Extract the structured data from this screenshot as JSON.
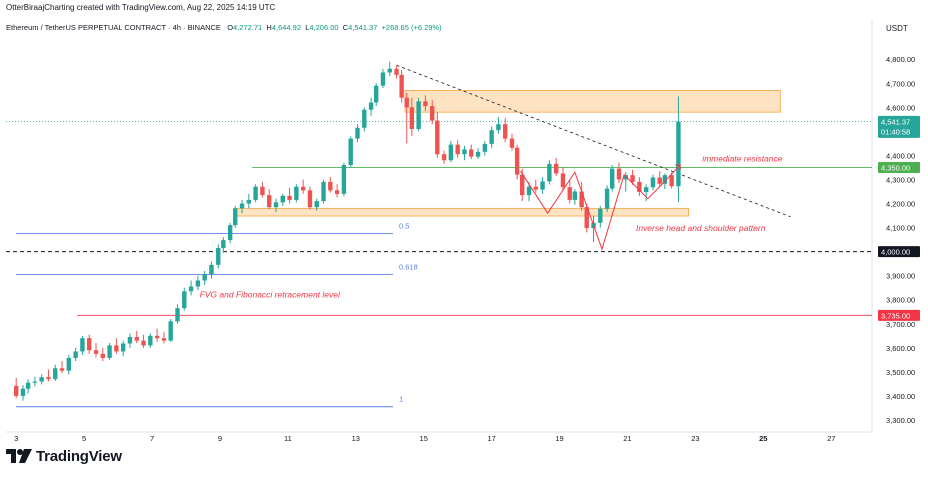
{
  "header": {
    "creator_line": "OtterBiraajCharting created with TradingView.com, Aug 22, 2025 14:19 UTC",
    "symbol": "Ethereum / TetherUS PERPETUAL CONTRACT · 4h · BINANCE",
    "open_label": "O",
    "open": "4,272.71",
    "high_label": "H",
    "high": "4,644.92",
    "low_label": "L",
    "low": "4,206.00",
    "close_label": "C",
    "close": "4,541.37",
    "change": "+268.65 (+6.29%)"
  },
  "footer": {
    "brand": "TradingView"
  },
  "colors": {
    "up": "#26a69a",
    "down": "#ef5350",
    "fvg_fill": "#fde3c2",
    "fvg_stroke": "#f7a440",
    "fib_line": "#5b7ee5",
    "resistance_line": "#4caf50",
    "red_line": "#f23645",
    "annotation_red": "#f23645"
  },
  "chart_data": {
    "type": "candlestick",
    "currency": "USDT",
    "ylim": [
      3250,
      4880
    ],
    "x_tick_labels": [
      "3",
      "5",
      "7",
      "9",
      "11",
      "13",
      "15",
      "17",
      "19",
      "21",
      "23",
      "25",
      "27"
    ],
    "x_tick_days": [
      3,
      5,
      7,
      9,
      11,
      13,
      15,
      17,
      19,
      21,
      23,
      25,
      27
    ],
    "x_range_days": [
      2.7,
      28.2
    ],
    "y_tick_labels": [
      "4,800.00",
      "4,700.00",
      "4,600.00",
      "4,400.00",
      "4,300.00",
      "4,200.00",
      "4,100.00",
      "3,900.00",
      "3,800.00",
      "3,700.00",
      "3,600.00",
      "3,500.00",
      "3,400.00",
      "3,300.00"
    ],
    "y_tick_values": [
      4800,
      4700,
      4600,
      4400,
      4300,
      4200,
      4100,
      3900,
      3800,
      3700,
      3600,
      3500,
      3400,
      3300
    ],
    "price_badges": [
      {
        "value": 4541.37,
        "label": "4,541.37",
        "sublabel": "01:40:58",
        "color": "#26a69a"
      },
      {
        "value": 4350,
        "label": "4,350.00",
        "color": "#4caf50"
      },
      {
        "value": 4000,
        "label": "4,000.00",
        "color": "#131722"
      },
      {
        "value": 3735,
        "label": "3,735.00",
        "color": "#f23645"
      }
    ],
    "horizontal_lines": [
      {
        "value": 4350,
        "from_day": 9.95,
        "color": "#4caf50",
        "style": "solid"
      },
      {
        "value": 4000,
        "from_day": 2.7,
        "color": "#131722",
        "style": "dashed"
      },
      {
        "value": 3735,
        "from_day": 4.8,
        "color": "#f23645",
        "style": "solid"
      },
      {
        "value": 4541,
        "from_day": 2.7,
        "color": "#26a69a",
        "style": "dotted"
      }
    ],
    "fib_levels": [
      {
        "label": "0.5",
        "value": 4075,
        "from_day": 2.7,
        "to_day": 13.8
      },
      {
        "label": "0.618",
        "value": 3905,
        "from_day": 2.7,
        "to_day": 13.8
      },
      {
        "label": "1",
        "value": 3355,
        "from_day": 2.7,
        "to_day": 13.8
      }
    ],
    "zones": [
      {
        "from_day": 14.45,
        "to_day": 25.5,
        "top": 4670,
        "bottom": 4580
      },
      {
        "from_day": 9.45,
        "to_day": 22.8,
        "top": 4180,
        "bottom": 4148
      }
    ],
    "trendline": {
      "x": [
        14.2,
        25.8
      ],
      "y": [
        4775,
        4145
      ]
    },
    "pattern_path": {
      "x": [
        17.85,
        18.65,
        19.45,
        20.25,
        20.9,
        21.6,
        22.05,
        22.55
      ],
      "y": [
        4335,
        4160,
        4330,
        4010,
        4320,
        4220,
        4285,
        4360
      ]
    },
    "annotations": [
      {
        "text": "immediate resistance",
        "day": 23.2,
        "value": 4375
      },
      {
        "text": "Inverse head and shoulder pattern",
        "day": 21.25,
        "value": 4085
      },
      {
        "text": "FVG and Fibonacci retracement level",
        "day": 8.4,
        "value": 3810
      }
    ],
    "candles": [
      [
        3.0,
        3442,
        3475,
        3390,
        3400
      ],
      [
        3.2,
        3400,
        3445,
        3380,
        3430
      ],
      [
        3.35,
        3430,
        3470,
        3410,
        3455
      ],
      [
        3.55,
        3455,
        3480,
        3440,
        3460
      ],
      [
        3.75,
        3460,
        3490,
        3448,
        3478
      ],
      [
        3.95,
        3478,
        3510,
        3460,
        3470
      ],
      [
        4.15,
        3470,
        3530,
        3462,
        3515
      ],
      [
        4.35,
        3515,
        3545,
        3495,
        3505
      ],
      [
        4.55,
        3505,
        3570,
        3490,
        3558
      ],
      [
        4.75,
        3558,
        3600,
        3545,
        3585
      ],
      [
        4.95,
        3585,
        3650,
        3570,
        3640
      ],
      [
        5.15,
        3640,
        3655,
        3575,
        3590
      ],
      [
        5.35,
        3590,
        3620,
        3560,
        3575
      ],
      [
        5.55,
        3575,
        3600,
        3545,
        3558
      ],
      [
        5.75,
        3558,
        3620,
        3550,
        3610
      ],
      [
        5.95,
        3610,
        3640,
        3575,
        3585
      ],
      [
        6.15,
        3585,
        3630,
        3565,
        3618
      ],
      [
        6.35,
        3618,
        3660,
        3600,
        3645
      ],
      [
        6.55,
        3645,
        3670,
        3620,
        3630
      ],
      [
        6.75,
        3630,
        3655,
        3600,
        3610
      ],
      [
        6.95,
        3610,
        3660,
        3600,
        3650
      ],
      [
        7.15,
        3650,
        3680,
        3625,
        3640
      ],
      [
        7.35,
        3640,
        3665,
        3618,
        3630
      ],
      [
        7.55,
        3630,
        3720,
        3625,
        3710
      ],
      [
        7.75,
        3710,
        3780,
        3700,
        3765
      ],
      [
        7.95,
        3765,
        3850,
        3755,
        3835
      ],
      [
        8.15,
        3835,
        3880,
        3818,
        3855
      ],
      [
        8.35,
        3855,
        3900,
        3840,
        3880
      ],
      [
        8.55,
        3880,
        3920,
        3862,
        3905
      ],
      [
        8.75,
        3905,
        3960,
        3888,
        3945
      ],
      [
        8.95,
        3945,
        4030,
        3930,
        4015
      ],
      [
        9.1,
        4015,
        4060,
        3995,
        4048
      ],
      [
        9.3,
        4048,
        4120,
        4035,
        4110
      ],
      [
        9.45,
        4110,
        4190,
        4100,
        4180
      ],
      [
        9.65,
        4180,
        4215,
        4160,
        4200
      ],
      [
        9.85,
        4200,
        4240,
        4180,
        4215
      ],
      [
        10.05,
        4215,
        4280,
        4205,
        4270
      ],
      [
        10.25,
        4270,
        4290,
        4225,
        4235
      ],
      [
        10.45,
        4235,
        4260,
        4175,
        4185
      ],
      [
        10.65,
        4185,
        4220,
        4165,
        4205
      ],
      [
        10.85,
        4205,
        4240,
        4190,
        4232
      ],
      [
        11.05,
        4232,
        4265,
        4200,
        4215
      ],
      [
        11.25,
        4215,
        4280,
        4205,
        4270
      ],
      [
        11.45,
        4270,
        4300,
        4240,
        4255
      ],
      [
        11.65,
        4255,
        4270,
        4175,
        4185
      ],
      [
        11.85,
        4185,
        4220,
        4170,
        4210
      ],
      [
        12.05,
        4210,
        4300,
        4200,
        4290
      ],
      [
        12.25,
        4290,
        4310,
        4245,
        4255
      ],
      [
        12.45,
        4255,
        4280,
        4225,
        4240
      ],
      [
        12.65,
        4240,
        4370,
        4230,
        4360
      ],
      [
        12.85,
        4360,
        4480,
        4350,
        4470
      ],
      [
        13.05,
        4470,
        4530,
        4455,
        4515
      ],
      [
        13.25,
        4515,
        4600,
        4500,
        4590
      ],
      [
        13.45,
        4590,
        4640,
        4565,
        4620
      ],
      [
        13.6,
        4620,
        4700,
        4605,
        4690
      ],
      [
        13.8,
        4690,
        4760,
        4680,
        4745
      ],
      [
        14.0,
        4745,
        4790,
        4730,
        4760
      ],
      [
        14.2,
        4760,
        4775,
        4720,
        4735
      ],
      [
        14.35,
        4735,
        4755,
        4620,
        4640
      ],
      [
        14.5,
        4640,
        4660,
        4450,
        4600
      ],
      [
        14.65,
        4600,
        4640,
        4480,
        4510
      ],
      [
        14.85,
        4510,
        4640,
        4500,
        4625
      ],
      [
        15.05,
        4625,
        4650,
        4585,
        4605
      ],
      [
        15.25,
        4605,
        4630,
        4530,
        4545
      ],
      [
        15.4,
        4545,
        4580,
        4390,
        4405
      ],
      [
        15.6,
        4405,
        4420,
        4365,
        4380
      ],
      [
        15.8,
        4380,
        4460,
        4372,
        4445
      ],
      [
        16.0,
        4445,
        4465,
        4390,
        4405
      ],
      [
        16.2,
        4405,
        4440,
        4380,
        4425
      ],
      [
        16.4,
        4425,
        4445,
        4385,
        4395
      ],
      [
        16.6,
        4395,
        4430,
        4385,
        4415
      ],
      [
        16.8,
        4415,
        4460,
        4400,
        4448
      ],
      [
        17.0,
        4448,
        4520,
        4430,
        4505
      ],
      [
        17.2,
        4505,
        4560,
        4490,
        4530
      ],
      [
        17.4,
        4530,
        4555,
        4455,
        4470
      ],
      [
        17.6,
        4470,
        4490,
        4420,
        4432
      ],
      [
        17.75,
        4432,
        4445,
        4300,
        4320
      ],
      [
        17.9,
        4320,
        4345,
        4210,
        4235
      ],
      [
        18.1,
        4235,
        4290,
        4210,
        4270
      ],
      [
        18.3,
        4270,
        4300,
        4245,
        4258
      ],
      [
        18.5,
        4258,
        4310,
        4240,
        4292
      ],
      [
        18.7,
        4292,
        4380,
        4280,
        4365
      ],
      [
        18.9,
        4365,
        4390,
        4315,
        4325
      ],
      [
        19.1,
        4325,
        4350,
        4255,
        4268
      ],
      [
        19.3,
        4268,
        4300,
        4200,
        4215
      ],
      [
        19.45,
        4215,
        4260,
        4195,
        4250
      ],
      [
        19.65,
        4250,
        4290,
        4170,
        4185
      ],
      [
        19.8,
        4185,
        4200,
        4080,
        4098
      ],
      [
        20.0,
        4098,
        4150,
        4040,
        4120
      ],
      [
        20.2,
        4120,
        4190,
        4100,
        4178
      ],
      [
        20.4,
        4178,
        4275,
        4165,
        4262
      ],
      [
        20.55,
        4262,
        4360,
        4250,
        4345
      ],
      [
        20.75,
        4345,
        4370,
        4285,
        4300
      ],
      [
        20.95,
        4300,
        4330,
        4250,
        4318
      ],
      [
        21.15,
        4318,
        4340,
        4278,
        4290
      ],
      [
        21.35,
        4290,
        4310,
        4232,
        4248
      ],
      [
        21.55,
        4248,
        4280,
        4210,
        4268
      ],
      [
        21.75,
        4268,
        4320,
        4255,
        4308
      ],
      [
        21.95,
        4308,
        4335,
        4272,
        4282
      ],
      [
        22.1,
        4282,
        4325,
        4260,
        4318
      ],
      [
        22.3,
        4318,
        4330,
        4262,
        4272
      ],
      [
        22.5,
        4272,
        4645,
        4206,
        4541
      ]
    ]
  }
}
